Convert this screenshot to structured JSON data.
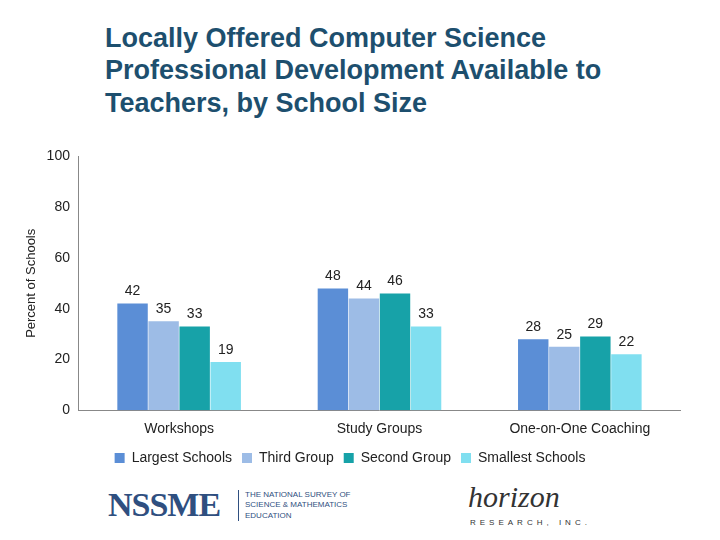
{
  "chart_data": {
    "type": "bar",
    "title": "Locally Offered Computer Science Professional Development Available to Teachers, by School Size",
    "ylabel": "Percent of Schools",
    "categories": [
      "Workshops",
      "Study Groups",
      "One-on-One Coaching"
    ],
    "series": [
      {
        "name": "Largest Schools",
        "color": "#5b8ed6",
        "values": [
          42,
          48,
          28
        ]
      },
      {
        "name": "Third Group",
        "color": "#9dbce6",
        "values": [
          35,
          44,
          25
        ]
      },
      {
        "name": "Second Group",
        "color": "#17a2a8",
        "values": [
          33,
          46,
          29
        ]
      },
      {
        "name": "Smallest Schools",
        "color": "#80dff0",
        "values": [
          19,
          33,
          22
        ]
      }
    ],
    "ylim": [
      0,
      100
    ],
    "yticks": [
      0,
      20,
      40,
      60,
      80,
      100
    ],
    "grid": false,
    "legend": "bottom",
    "data_labels": true,
    "annotations": [
      "NSSME",
      "THE NATIONAL SURVEY OF SCIENCE & MATHEMATICS EDUCATION",
      "horizon",
      "RESEARCH, INC."
    ]
  }
}
